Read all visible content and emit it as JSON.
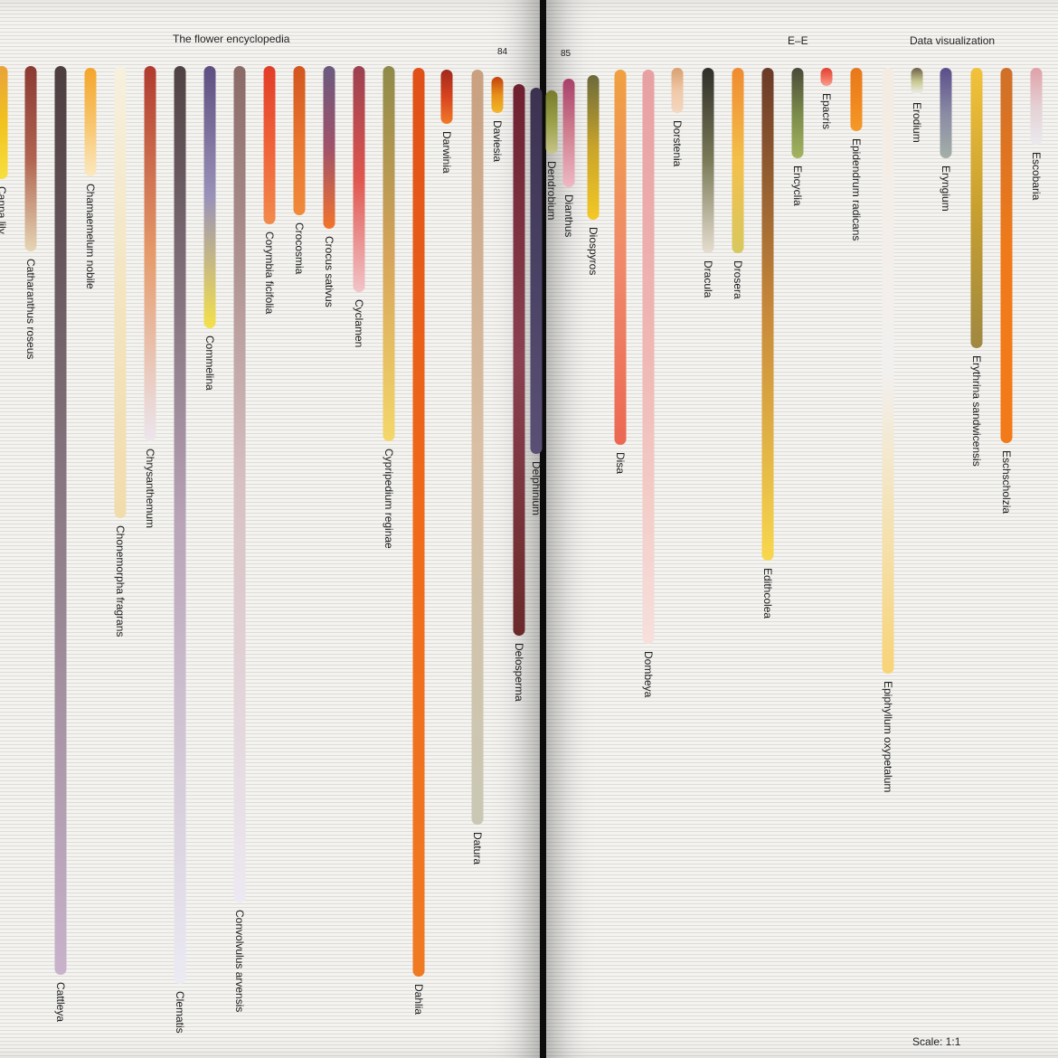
{
  "header": {
    "left_title": "The flower encyclopedia",
    "left_page": "84",
    "right_page": "85",
    "range": "E–E",
    "right_title": "Data visualization"
  },
  "footer": {
    "scale": "Scale: 1:1"
  },
  "chart_data": {
    "type": "bar",
    "orientation": "vertical-hanging",
    "title": "",
    "xlabel": "",
    "ylabel": "",
    "ylim": [
      0,
      1100
    ],
    "grid": true,
    "legend": "none",
    "bars": [
      {
        "name": "Canna lily",
        "length": 125,
        "colors": [
          "#e8a23a",
          "#f2c21e",
          "#f7e040"
        ]
      },
      {
        "name": "Catharanthus roseus",
        "length": 205,
        "colors": [
          "#8b3a32",
          "#b06450",
          "#e6d6b5"
        ]
      },
      {
        "name": "Cattleya",
        "length": 1005,
        "colors": [
          "#4c3d3f",
          "#8d7b86",
          "#c9b3cc"
        ]
      },
      {
        "name": "Chamaemelum nobile",
        "length": 120,
        "colors": [
          "#f3a52a",
          "#f8c46a",
          "#fbe9c0"
        ]
      },
      {
        "name": "Chonemorpha fragrans",
        "length": 500,
        "colors": [
          "#f6f0de",
          "#f4e5c0",
          "#f1dcac"
        ]
      },
      {
        "name": "Chrysanthemum",
        "length": 415,
        "colors": [
          "#b03a2e",
          "#e69a6a",
          "#ece6ee"
        ]
      },
      {
        "name": "Clematis",
        "length": 1015,
        "colors": [
          "#4f4143",
          "#b9a4b8",
          "#ecebf4"
        ]
      },
      {
        "name": "Commelina",
        "length": 290,
        "colors": [
          "#5d4f80",
          "#9a92b9",
          "#f4e14a"
        ]
      },
      {
        "name": "Convolvulus arvensis",
        "length": 925,
        "colors": [
          "#8a6a66",
          "#d8c0c2",
          "#ede9f2"
        ]
      },
      {
        "name": "Corymbia ficifolia",
        "length": 175,
        "colors": [
          "#e23c28",
          "#f06238",
          "#f38a4c"
        ]
      },
      {
        "name": "Crocosmia",
        "length": 165,
        "colors": [
          "#d2561e",
          "#e8742e",
          "#f08a3a"
        ]
      },
      {
        "name": "Crocus sativus",
        "length": 180,
        "colors": [
          "#6b5a7f",
          "#a0526a",
          "#f2742c"
        ]
      },
      {
        "name": "Cyclamen",
        "length": 250,
        "colors": [
          "#9b4150",
          "#e0564e",
          "#f2c4c8"
        ]
      },
      {
        "name": "Cypripedium reginae",
        "length": 415,
        "colors": [
          "#8f8a48",
          "#d6a45a",
          "#f4d86a"
        ]
      },
      {
        "name": "Dahlia",
        "length": 1005,
        "colors": [
          "#e05018",
          "#f06a1a",
          "#f07a22"
        ]
      },
      {
        "name": "Darwinia",
        "length": 60,
        "colors": [
          "#a02a1c",
          "#d8431e",
          "#f07a2a"
        ]
      },
      {
        "name": "Datura",
        "length": 835,
        "colors": [
          "#c9a080",
          "#d9bfa4",
          "#c9c8b4"
        ]
      },
      {
        "name": "Daviesia",
        "length": 40,
        "colors": [
          "#c2410f",
          "#e7901a",
          "#f2b82a"
        ]
      },
      {
        "name": "Delosperma",
        "length": 610,
        "colors": [
          "#6e2030",
          "#8a4050",
          "#6a2a2a"
        ]
      },
      {
        "name": "Delphinium",
        "length": 405,
        "colors": [
          "#3c3250",
          "#4a4264",
          "#5a5076"
        ]
      },
      {
        "name": "Dendrobium",
        "length": 70,
        "colors": [
          "#767a2a",
          "#9aa048",
          "#c7c48a"
        ]
      },
      {
        "name": "Dianthus",
        "length": 120,
        "colors": [
          "#a8406a",
          "#d08090",
          "#efb8c4"
        ]
      },
      {
        "name": "Diospyros",
        "length": 160,
        "colors": [
          "#6b6a3c",
          "#c9a42a",
          "#f4c826"
        ]
      },
      {
        "name": "Disa",
        "length": 415,
        "colors": [
          "#f0a040",
          "#f08a6a",
          "#ec6852"
        ]
      },
      {
        "name": "Dombeya",
        "length": 635,
        "colors": [
          "#e8a0a2",
          "#f0b8b4",
          "#f7e0dc"
        ]
      },
      {
        "name": "Dorstenia",
        "length": 50,
        "colors": [
          "#d8a070",
          "#f0c8a8",
          "#f4d8c0"
        ]
      },
      {
        "name": "Dracula",
        "length": 205,
        "colors": [
          "#2f2e28",
          "#7a7a58",
          "#e6ded0"
        ]
      },
      {
        "name": "Droserа",
        "length": 205,
        "colors": [
          "#f08a30",
          "#f3c04a",
          "#d8c860"
        ]
      },
      {
        "name": "Edithcolea",
        "length": 545,
        "colors": [
          "#6a3a28",
          "#c88a3a",
          "#f8d84e"
        ]
      },
      {
        "name": "Encyclia",
        "length": 100,
        "colors": [
          "#4a4a38",
          "#7a8a4a",
          "#a4b460"
        ]
      },
      {
        "name": "Epacris",
        "length": 20,
        "colors": [
          "#e04030",
          "#f06a58",
          "#f8a090"
        ]
      },
      {
        "name": "Epidendrum radicans",
        "length": 70,
        "colors": [
          "#e8781c",
          "#f0861e",
          "#f49a28"
        ]
      },
      {
        "name": "Epiphyllum oxypetalum",
        "length": 670,
        "colors": [
          "#f4ece2",
          "#f2f0ef",
          "#f8d478"
        ]
      },
      {
        "name": "Erodium",
        "length": 30,
        "colors": [
          "#6e6048",
          "#c8c890",
          "#f2f2f4"
        ]
      },
      {
        "name": "Eryngium",
        "length": 100,
        "colors": [
          "#5a4e8a",
          "#8a8aa4",
          "#a4b0a8"
        ]
      },
      {
        "name": "Erythrina sandwicensis",
        "length": 310,
        "colors": [
          "#f2c23a",
          "#c8a030",
          "#a08840"
        ]
      },
      {
        "name": "Eschscholzia",
        "length": 415,
        "colors": [
          "#d07028",
          "#f07a1a",
          "#f37a18"
        ]
      },
      {
        "name": "Escobaria",
        "length": 85,
        "colors": [
          "#e0a0a8",
          "#e4d0d4",
          "#ebeaee"
        ]
      }
    ]
  }
}
